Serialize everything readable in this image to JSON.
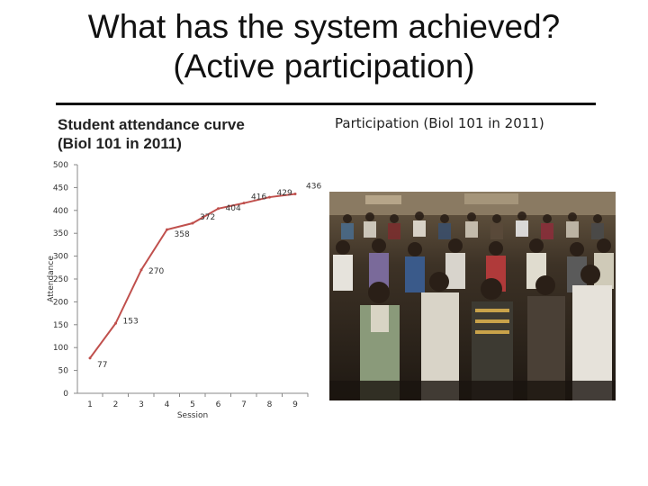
{
  "slide": {
    "title_line1": "What has the system achieved?",
    "title_line2": "(Active participation)",
    "photo_caption": "Participation (Biol 101 in 2011)"
  },
  "chart_data": {
    "type": "line",
    "title_line1": "Student attendance curve",
    "title_line2": "(Biol 101 in 2011)",
    "xlabel": "Session",
    "ylabel": "Attendance",
    "x": [
      1,
      2,
      3,
      4,
      5,
      6,
      7,
      8,
      9
    ],
    "values": [
      77,
      153,
      270,
      358,
      372,
      404,
      416,
      429,
      436
    ],
    "ylim": [
      0,
      500
    ],
    "yticks": [
      0,
      50,
      100,
      150,
      200,
      250,
      300,
      350,
      400,
      450,
      500
    ],
    "grid": false,
    "color": "#c0504d"
  }
}
